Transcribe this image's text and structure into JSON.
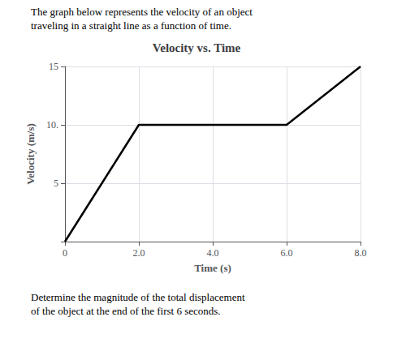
{
  "chart_data": {
    "type": "line",
    "title": "Velocity vs. Time",
    "xlabel": "Time (s)",
    "ylabel": "Velocity (m/s)",
    "annotations": [
      "The graph below represents the velocity of an object",
      "traveling in a straight line as a function of time.",
      "Determine the magnitude of the total displacement",
      "of the object at the end of the first 6 seconds."
    ],
    "x": [
      0,
      2.0,
      6.0,
      8.0
    ],
    "values": [
      0,
      10,
      10,
      15
    ],
    "color": "#000000",
    "xlim": [
      0,
      8.0
    ],
    "ylim": [
      0,
      15
    ],
    "xticks": [
      0,
      {
        "value": 2.0,
        "label": "2.0"
      },
      {
        "value": 4.0,
        "label": "4.0"
      },
      {
        "value": 6.0,
        "label": "6.0"
      },
      {
        "value": 8.0,
        "label": "8.0"
      }
    ],
    "yticks": [
      {
        "value": 0,
        "label": ""
      },
      5,
      {
        "value": 10,
        "label": "10."
      },
      15
    ],
    "grid": true
  }
}
